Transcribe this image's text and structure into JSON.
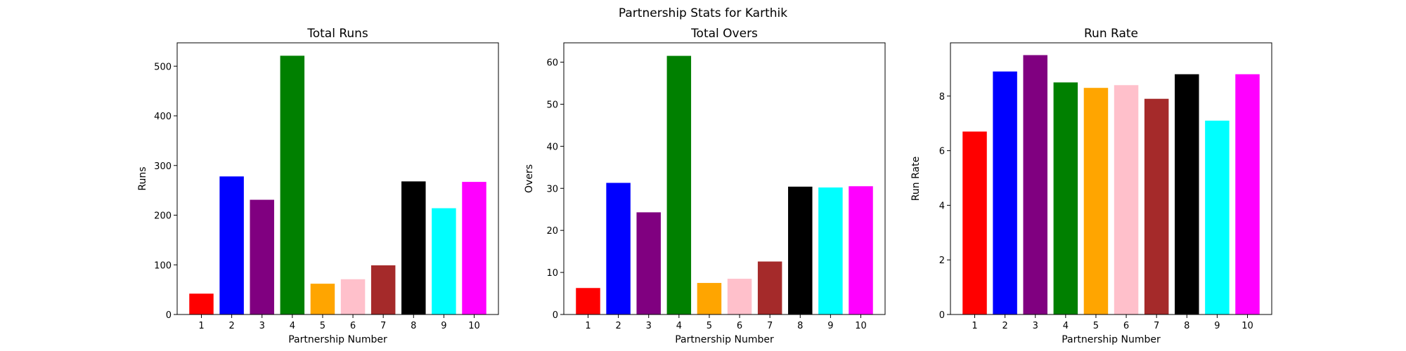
{
  "figure": {
    "suptitle": "Partnership Stats for Karthik"
  },
  "chart_data": [
    {
      "type": "bar",
      "title": "Total Runs",
      "xlabel": "Partnership Number",
      "ylabel": "Runs",
      "categories": [
        "1",
        "2",
        "3",
        "4",
        "5",
        "6",
        "7",
        "8",
        "9",
        "10"
      ],
      "values": [
        42,
        278,
        231,
        521,
        62,
        71,
        99,
        268,
        214,
        267
      ],
      "colors": [
        "#ff0000",
        "#0000ff",
        "#800080",
        "#008000",
        "#ffa500",
        "#ffc0cb",
        "#a52a2a",
        "#000000",
        "#00ffff",
        "#ff00ff"
      ],
      "ylim": [
        0,
        547
      ],
      "yticks": [
        0,
        100,
        200,
        300,
        400,
        500
      ],
      "grid": false
    },
    {
      "type": "bar",
      "title": "Total Overs",
      "xlabel": "Partnership Number",
      "ylabel": "Overs",
      "categories": [
        "1",
        "2",
        "3",
        "4",
        "5",
        "6",
        "7",
        "8",
        "9",
        "10"
      ],
      "values": [
        6.3,
        31.3,
        24.3,
        61.5,
        7.5,
        8.5,
        12.6,
        30.4,
        30.2,
        30.5
      ],
      "colors": [
        "#ff0000",
        "#0000ff",
        "#800080",
        "#008000",
        "#ffa500",
        "#ffc0cb",
        "#a52a2a",
        "#000000",
        "#00ffff",
        "#ff00ff"
      ],
      "ylim": [
        0,
        64.6
      ],
      "yticks": [
        0,
        10,
        20,
        30,
        40,
        50,
        60
      ],
      "grid": false
    },
    {
      "type": "bar",
      "title": "Run Rate",
      "xlabel": "Partnership Number",
      "ylabel": "Run Rate",
      "categories": [
        "1",
        "2",
        "3",
        "4",
        "5",
        "6",
        "7",
        "8",
        "9",
        "10"
      ],
      "values": [
        6.7,
        8.9,
        9.5,
        8.5,
        8.3,
        8.4,
        7.9,
        8.8,
        7.1,
        8.8
      ],
      "colors": [
        "#ff0000",
        "#0000ff",
        "#800080",
        "#008000",
        "#ffa500",
        "#ffc0cb",
        "#a52a2a",
        "#000000",
        "#00ffff",
        "#ff00ff"
      ],
      "ylim": [
        0,
        9.95
      ],
      "yticks": [
        0,
        2,
        4,
        6,
        8
      ],
      "grid": false
    }
  ]
}
